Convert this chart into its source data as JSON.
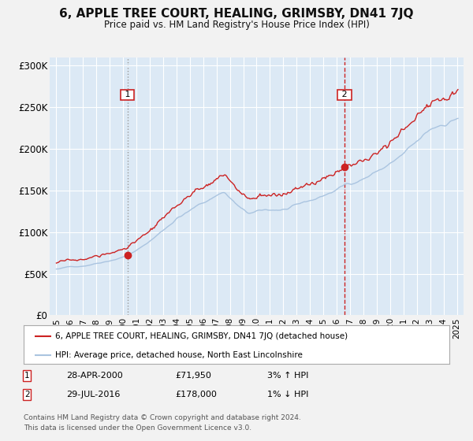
{
  "title": "6, APPLE TREE COURT, HEALING, GRIMSBY, DN41 7JQ",
  "subtitle": "Price paid vs. HM Land Registry's House Price Index (HPI)",
  "title_fontsize": 11,
  "subtitle_fontsize": 9,
  "xlim": [
    1994.5,
    2025.5
  ],
  "ylim": [
    0,
    310000
  ],
  "yticks": [
    0,
    50000,
    100000,
    150000,
    200000,
    250000,
    300000
  ],
  "ytick_labels": [
    "£0",
    "£50K",
    "£100K",
    "£150K",
    "£200K",
    "£250K",
    "£300K"
  ],
  "xticks": [
    1995,
    1996,
    1997,
    1998,
    1999,
    2000,
    2001,
    2002,
    2003,
    2004,
    2005,
    2006,
    2007,
    2008,
    2009,
    2010,
    2011,
    2012,
    2013,
    2014,
    2015,
    2016,
    2017,
    2018,
    2019,
    2020,
    2021,
    2022,
    2023,
    2024,
    2025
  ],
  "background_color": "#dce9f5",
  "fig_background": "#f2f2f2",
  "grid_color": "#ffffff",
  "hpi_line_color": "#aac4e0",
  "price_line_color": "#cc2222",
  "t1_x": 2000.32,
  "t1_price": 71950,
  "t2_x": 2016.58,
  "t2_price": 178000,
  "legend_line1": "6, APPLE TREE COURT, HEALING, GRIMSBY, DN41 7JQ (detached house)",
  "legend_line2": "HPI: Average price, detached house, North East Lincolnshire",
  "footnote3": "Contains HM Land Registry data © Crown copyright and database right 2024.",
  "footnote4": "This data is licensed under the Open Government Licence v3.0."
}
